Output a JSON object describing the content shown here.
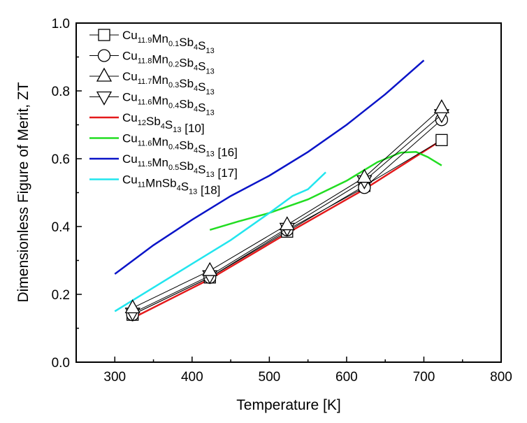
{
  "chart_data": {
    "type": "line",
    "title": "",
    "xlabel": "Temperature [K]",
    "ylabel": "Dimensionless Figure of Merit, ZT",
    "xlim": [
      250,
      800
    ],
    "ylim": [
      0,
      1.0
    ],
    "xticks": [
      "300",
      "400",
      "500",
      "600",
      "700",
      "800"
    ],
    "yticks": [
      "0.0",
      "0.2",
      "0.4",
      "0.6",
      "0.8",
      "1.0"
    ],
    "legend_position": "top-left",
    "series": [
      {
        "name": "Cu11.9Mn0.1Sb4S13",
        "parts": [
          [
            "Cu",
            ""
          ],
          [
            "11.9",
            "s"
          ],
          [
            "Mn",
            ""
          ],
          [
            "0.1",
            "s"
          ],
          [
            "Sb",
            ""
          ],
          [
            "4",
            "s"
          ],
          [
            "S",
            ""
          ],
          [
            "13",
            "s"
          ]
        ],
        "color": "#000000",
        "marker": "square",
        "x": [
          323,
          423,
          523,
          623,
          723
        ],
        "y": [
          0.14,
          0.25,
          0.385,
          0.52,
          0.655
        ]
      },
      {
        "name": "Cu11.8Mn0.2Sb4S13",
        "parts": [
          [
            "Cu",
            ""
          ],
          [
            "11.8",
            "s"
          ],
          [
            "Mn",
            ""
          ],
          [
            "0.2",
            "s"
          ],
          [
            "Sb",
            ""
          ],
          [
            "4",
            "s"
          ],
          [
            "S",
            ""
          ],
          [
            "13",
            "s"
          ]
        ],
        "color": "#000000",
        "marker": "circle",
        "x": [
          323,
          423,
          523,
          623,
          723
        ],
        "y": [
          0.14,
          0.25,
          0.39,
          0.515,
          0.715
        ]
      },
      {
        "name": "Cu11.7Mn0.3Sb4S13",
        "parts": [
          [
            "Cu",
            ""
          ],
          [
            "11.7",
            "s"
          ],
          [
            "Mn",
            ""
          ],
          [
            "0.3",
            "s"
          ],
          [
            "Sb",
            ""
          ],
          [
            "4",
            "s"
          ],
          [
            "S",
            ""
          ],
          [
            "13",
            "s"
          ]
        ],
        "color": "#000000",
        "marker": "triangle-up",
        "x": [
          323,
          423,
          523,
          623,
          723
        ],
        "y": [
          0.16,
          0.27,
          0.405,
          0.545,
          0.75
        ]
      },
      {
        "name": "Cu11.6Mn0.4Sb4S13",
        "parts": [
          [
            "Cu",
            ""
          ],
          [
            "11.6",
            "s"
          ],
          [
            "Mn",
            ""
          ],
          [
            "0.4",
            "s"
          ],
          [
            "Sb",
            ""
          ],
          [
            "4",
            "s"
          ],
          [
            "S",
            ""
          ],
          [
            "13",
            "s"
          ]
        ],
        "color": "#000000",
        "marker": "triangle-down",
        "x": [
          323,
          423,
          523,
          623,
          723
        ],
        "y": [
          0.145,
          0.255,
          0.395,
          0.535,
          0.73
        ]
      },
      {
        "name": "Cu12Sb4S13 [10]",
        "parts": [
          [
            "Cu",
            ""
          ],
          [
            "12",
            "s"
          ],
          [
            "Sb",
            ""
          ],
          [
            "4",
            "s"
          ],
          [
            "S",
            ""
          ],
          [
            "13",
            "s"
          ],
          [
            " [10]",
            ""
          ]
        ],
        "color": "#e41a1c",
        "marker": "none",
        "x": [
          323,
          423,
          523,
          623,
          723
        ],
        "y": [
          0.13,
          0.245,
          0.38,
          0.51,
          0.655
        ]
      },
      {
        "name": "Cu11.6Mn0.4Sb4S13 [16]",
        "parts": [
          [
            "Cu",
            ""
          ],
          [
            "11.6",
            "s"
          ],
          [
            "Mn",
            ""
          ],
          [
            "0.4",
            "s"
          ],
          [
            "Sb",
            ""
          ],
          [
            "4",
            "s"
          ],
          [
            "S",
            ""
          ],
          [
            "13",
            "s"
          ],
          [
            " [16]",
            ""
          ]
        ],
        "color": "#22dd22",
        "marker": "none",
        "x": [
          423,
          460,
          500,
          550,
          600,
          640,
          670,
          690,
          705,
          723
        ],
        "y": [
          0.39,
          0.415,
          0.44,
          0.48,
          0.535,
          0.59,
          0.618,
          0.62,
          0.605,
          0.58
        ]
      },
      {
        "name": "Cu11.5Mn0.5Sb4S13 [17]",
        "parts": [
          [
            "Cu",
            ""
          ],
          [
            "11.5",
            "s"
          ],
          [
            "Mn",
            ""
          ],
          [
            "0.5",
            "s"
          ],
          [
            "Sb",
            ""
          ],
          [
            "4",
            "s"
          ],
          [
            "S",
            ""
          ],
          [
            "13",
            "s"
          ],
          [
            " [17]",
            ""
          ]
        ],
        "color": "#0a14c8",
        "marker": "none",
        "x": [
          300,
          350,
          400,
          450,
          500,
          550,
          600,
          650,
          700
        ],
        "y": [
          0.26,
          0.345,
          0.42,
          0.49,
          0.55,
          0.62,
          0.7,
          0.79,
          0.89
        ]
      },
      {
        "name": "Cu11MnSb4S13 [18]",
        "parts": [
          [
            "Cu",
            ""
          ],
          [
            "11",
            "s"
          ],
          [
            "MnSb",
            ""
          ],
          [
            "4",
            "s"
          ],
          [
            "S",
            ""
          ],
          [
            "13",
            "s"
          ],
          [
            " [18]",
            ""
          ]
        ],
        "color": "#22e5ee",
        "marker": "none",
        "x": [
          300,
          350,
          400,
          450,
          500,
          530,
          550,
          573
        ],
        "y": [
          0.15,
          0.22,
          0.29,
          0.36,
          0.44,
          0.49,
          0.51,
          0.56
        ]
      }
    ]
  }
}
